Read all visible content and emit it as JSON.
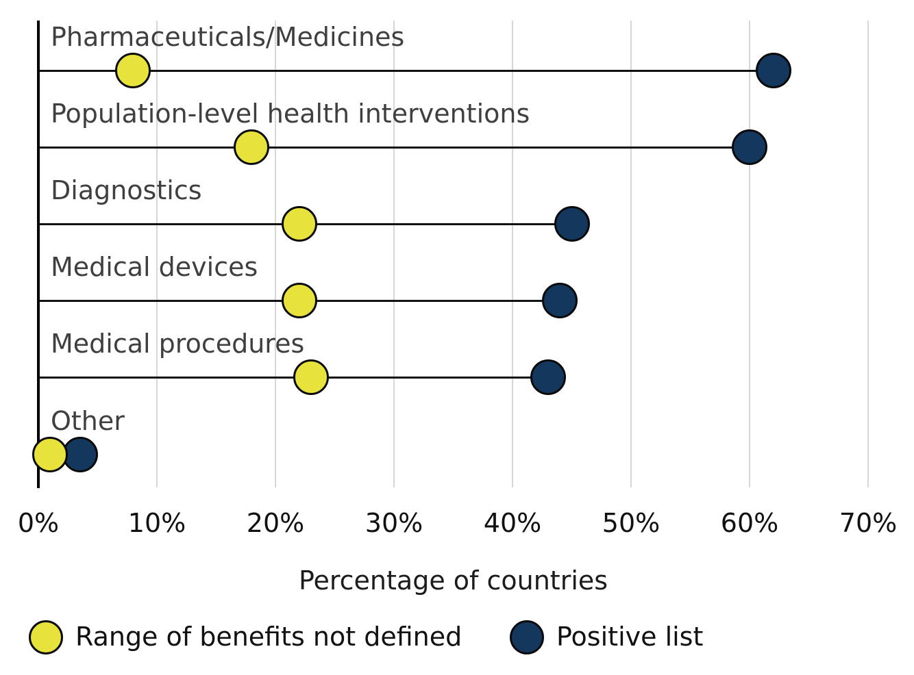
{
  "chart_data": {
    "type": "scatter",
    "variant": "horizontal dumbbell dot plot",
    "categories": [
      "Pharmaceuticals/Medicines",
      "Population-level health interventions",
      "Diagnostics",
      "Medical devices",
      "Medical procedures",
      "Other"
    ],
    "series": [
      {
        "name": "Range of benefits not defined",
        "color": "#e8e33c",
        "values": [
          8,
          18,
          22,
          22,
          23,
          1
        ]
      },
      {
        "name": "Positive list",
        "color": "#14375e",
        "values": [
          62,
          60,
          45,
          44,
          43,
          3.5
        ]
      }
    ],
    "xlabel": "Percentage of countries",
    "xlim": [
      0,
      70
    ],
    "x_ticks": [
      "0%",
      "10%",
      "20%",
      "30%",
      "40%",
      "50%",
      "60%",
      "70%"
    ],
    "grid": "vertical gridlines only",
    "legend_position": "bottom-left"
  },
  "colors": {
    "not_defined_dot": "#e8e33c",
    "positive_list_dot": "#14375e",
    "gridline": "#d6d6d6",
    "axis": "#000000",
    "category_label": "#3f3f3f",
    "tick_label": "#111111"
  }
}
